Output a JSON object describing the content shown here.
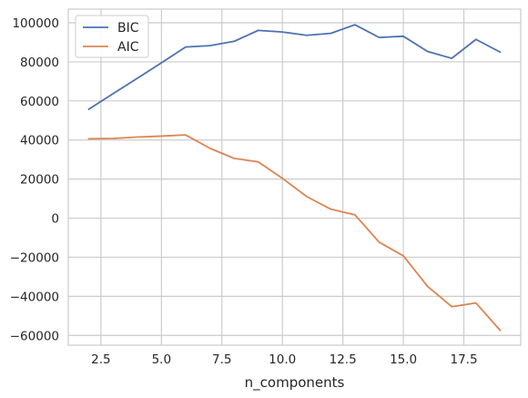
{
  "chart_data": {
    "type": "line",
    "title": "",
    "xlabel": "n_components",
    "ylabel": "",
    "grid": true,
    "legend_placement": "top-left",
    "xlim": [
      1.15,
      19.85
    ],
    "ylim": [
      -65000,
      107000
    ],
    "xticks": [
      2.5,
      5.0,
      7.5,
      10.0,
      12.5,
      15.0,
      17.5
    ],
    "xtick_labels": [
      "2.5",
      "5.0",
      "7.5",
      "10.0",
      "12.5",
      "15.0",
      "17.5"
    ],
    "yticks": [
      -60000,
      -40000,
      -20000,
      0,
      20000,
      40000,
      60000,
      80000,
      100000
    ],
    "ytick_labels": [
      "−60000",
      "−40000",
      "−20000",
      "0",
      "20000",
      "40000",
      "60000",
      "80000",
      "100000"
    ],
    "x": [
      2,
      3,
      4,
      5,
      6,
      7,
      8,
      9,
      10,
      11,
      12,
      13,
      14,
      15,
      16,
      17,
      18,
      19
    ],
    "series": [
      {
        "name": "BIC",
        "color": "#4c72b0",
        "values": [
          55800,
          63700,
          71600,
          79500,
          87600,
          88300,
          90500,
          96100,
          95300,
          93600,
          94600,
          99000,
          92500,
          93100,
          85300,
          81800,
          91500,
          85000
        ]
      },
      {
        "name": "AIC",
        "color": "#dd8452",
        "values": [
          40600,
          40800,
          41500,
          42000,
          42600,
          35800,
          30600,
          28800,
          20400,
          11100,
          4600,
          1700,
          -12300,
          -19300,
          -34900,
          -45300,
          -43400,
          -57400
        ]
      }
    ]
  }
}
